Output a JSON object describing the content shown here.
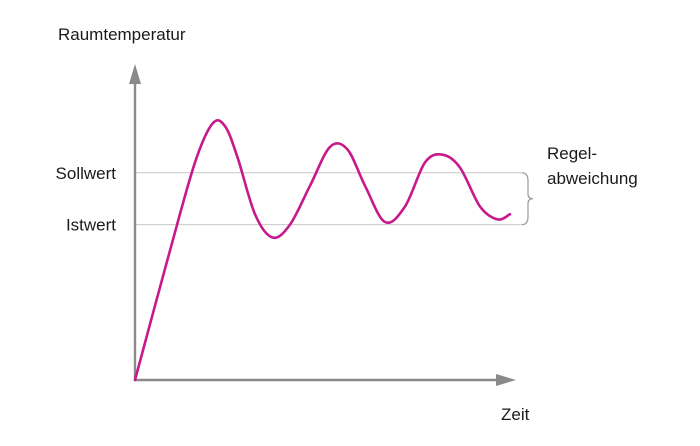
{
  "chart_data": {
    "type": "line",
    "ylabel": "Raumtemperatur",
    "xlabel": "Zeit",
    "y_ticks": [
      {
        "label": "Sollwert",
        "value": 0.8
      },
      {
        "label": "Istwert",
        "value": 0.6
      }
    ],
    "annotation": {
      "line1": "Regel-",
      "line2": "abweichung"
    },
    "ylim": [
      0,
      1
    ],
    "xlim": [
      0,
      1
    ],
    "series": [
      {
        "color": "#c8198c",
        "x": [
          0.0,
          0.07,
          0.12,
          0.155,
          0.18,
          0.205,
          0.24,
          0.275,
          0.31,
          0.35,
          0.39,
          0.425,
          0.46,
          0.5,
          0.54,
          0.58,
          0.615,
          0.65,
          0.69,
          0.725,
          0.75
        ],
        "y": [
          0.0,
          0.5,
          0.84,
          0.99,
          0.98,
          0.86,
          0.64,
          0.55,
          0.6,
          0.75,
          0.9,
          0.89,
          0.75,
          0.61,
          0.67,
          0.84,
          0.87,
          0.82,
          0.67,
          0.62,
          0.64
        ]
      }
    ],
    "grid": false,
    "colors": {
      "axis": "#8a8a8a",
      "guide": "#c8c8c8",
      "curve": "#c8198c"
    }
  }
}
